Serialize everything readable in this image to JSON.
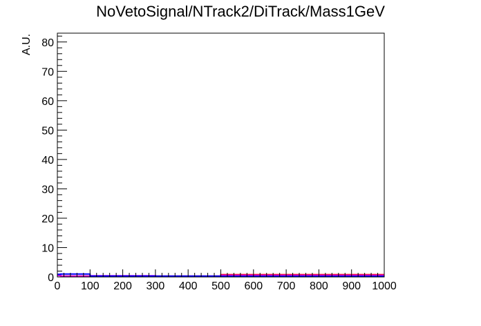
{
  "chart_data": {
    "type": "line",
    "title": "NoVetoSignal/NTrack2/DiTrack/Mass1GeV",
    "xlabel": "",
    "ylabel": "A.U.",
    "xlim": [
      0,
      1000
    ],
    "ylim": [
      0,
      83
    ],
    "x_ticks": [
      0,
      100,
      200,
      300,
      400,
      500,
      600,
      700,
      800,
      900,
      1000
    ],
    "y_ticks": [
      0,
      10,
      20,
      30,
      40,
      50,
      60,
      70,
      80
    ],
    "grid": false,
    "legend": "none",
    "series": [
      {
        "color": "#ff0000",
        "bins": [
          [
            0,
            10,
            0.6
          ],
          [
            10,
            100,
            0.3
          ],
          [
            100,
            500,
            0.3
          ],
          [
            500,
            1000,
            0.8
          ]
        ]
      },
      {
        "color": "#cc00cc",
        "bins": [
          [
            0,
            10,
            0.5
          ],
          [
            10,
            100,
            0.3
          ],
          [
            100,
            300,
            0.4
          ],
          [
            300,
            500,
            0.2
          ],
          [
            500,
            1000,
            0.6
          ]
        ]
      },
      {
        "color": "#0000ff",
        "bins": [
          [
            0,
            10,
            0.9
          ],
          [
            10,
            100,
            1.0
          ],
          [
            100,
            500,
            0.3
          ],
          [
            500,
            1000,
            0.2
          ]
        ]
      }
    ]
  }
}
